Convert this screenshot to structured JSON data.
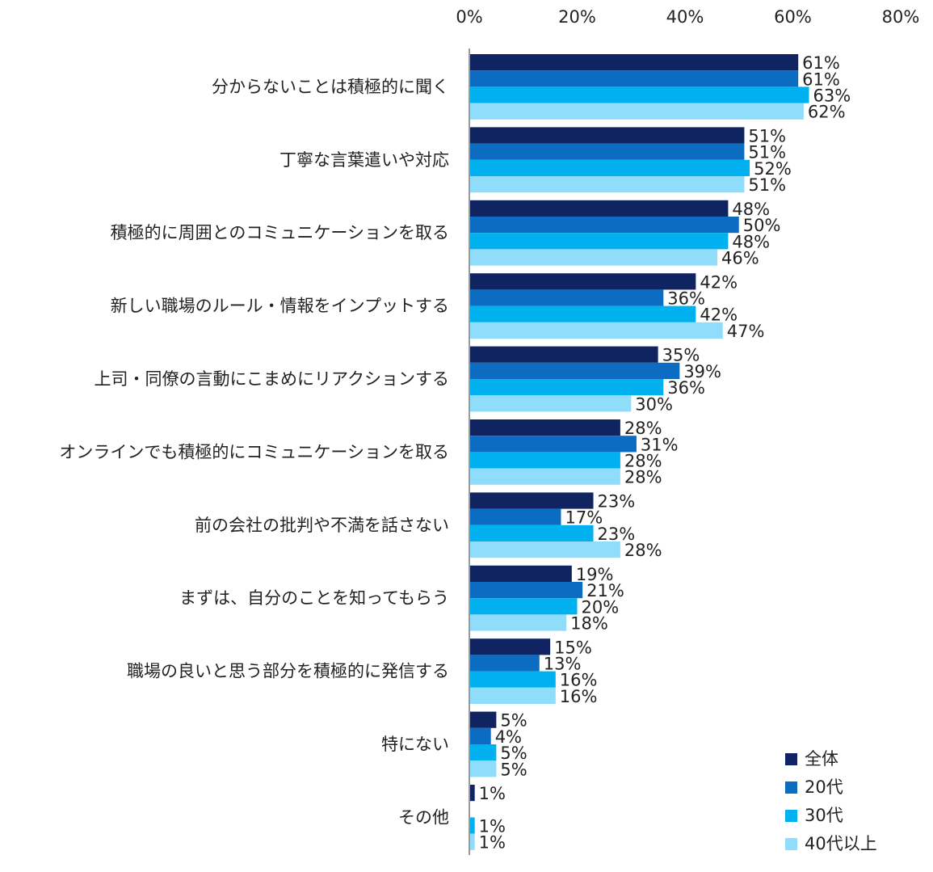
{
  "chart_data": {
    "type": "bar",
    "orientation": "horizontal",
    "title": "",
    "xlabel": "",
    "ylabel": "",
    "xlim": [
      0,
      80
    ],
    "x_ticks": [
      "0%",
      "20%",
      "40%",
      "60%",
      "80%"
    ],
    "x_axis_position": "top",
    "grid": false,
    "legend_position": "bottom-right",
    "categories": [
      "分からないことは積極的に聞く",
      "丁寧な言葉遣いや対応",
      "積極的に周囲とのコミュニケーションを取る",
      "新しい職場のルール・情報をインプットする",
      "上司・同僚の言動にこまめにリアクションする",
      "オンラインでも積極的にコミュニケーションを取る",
      "前の会社の批判や不満を話さない",
      "まずは、自分のことを知ってもらう",
      "職場の良いと思う部分を積極的に発信する",
      "特にない",
      "その他"
    ],
    "series": [
      {
        "name": "全体",
        "color": "#0f2460",
        "values": [
          61,
          51,
          48,
          42,
          35,
          28,
          23,
          19,
          15,
          5,
          1
        ]
      },
      {
        "name": "20代",
        "color": "#0b6cc1",
        "values": [
          61,
          51,
          50,
          36,
          39,
          31,
          17,
          21,
          13,
          4,
          0
        ]
      },
      {
        "name": "30代",
        "color": "#00b0ef",
        "values": [
          63,
          52,
          48,
          42,
          36,
          28,
          23,
          20,
          16,
          5,
          1
        ]
      },
      {
        "name": "40代以上",
        "color": "#8fdcfb",
        "values": [
          62,
          51,
          46,
          47,
          30,
          28,
          28,
          18,
          16,
          5,
          1
        ]
      }
    ],
    "value_suffix": "%"
  }
}
